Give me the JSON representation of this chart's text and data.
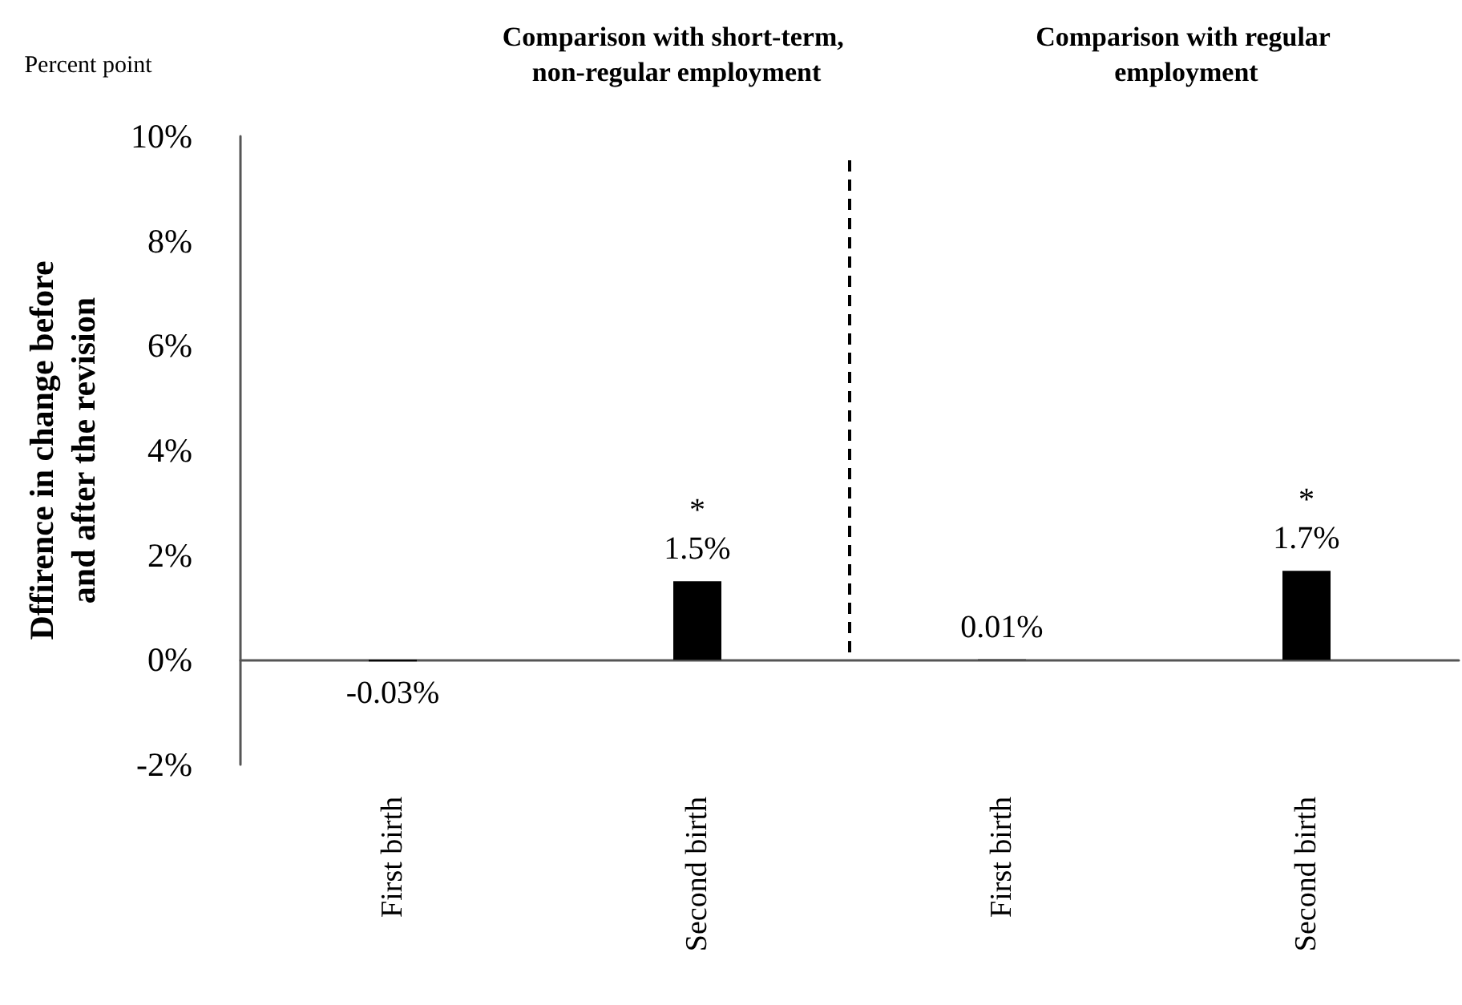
{
  "chart_data": {
    "type": "bar",
    "ylabel": "Dffirence in change before and after the revision",
    "categories": [
      "First birth",
      "Second birth",
      "First birth",
      "Second birth"
    ],
    "values": [
      -0.03,
      1.5,
      0.01,
      1.7
    ],
    "color": "#000000",
    "value_labels": [
      "-0.03%",
      "*\n1.5%",
      "0.01%",
      "*\n1.7%"
    ],
    "ylim": [
      -2,
      10
    ],
    "yticks": [
      {
        "value": -2,
        "label": "-2%"
      },
      {
        "value": 0,
        "label": "0%"
      },
      {
        "value": 2,
        "label": "2%"
      },
      {
        "value": 4,
        "label": "4%"
      },
      {
        "value": 6,
        "label": "6%"
      },
      {
        "value": 8,
        "label": "8%"
      },
      {
        "value": 10,
        "label": "10%"
      }
    ],
    "annotations": [
      "Comparison with short-term, non-regular employment",
      "Comparison with regular employment",
      "Percent point"
    ]
  }
}
